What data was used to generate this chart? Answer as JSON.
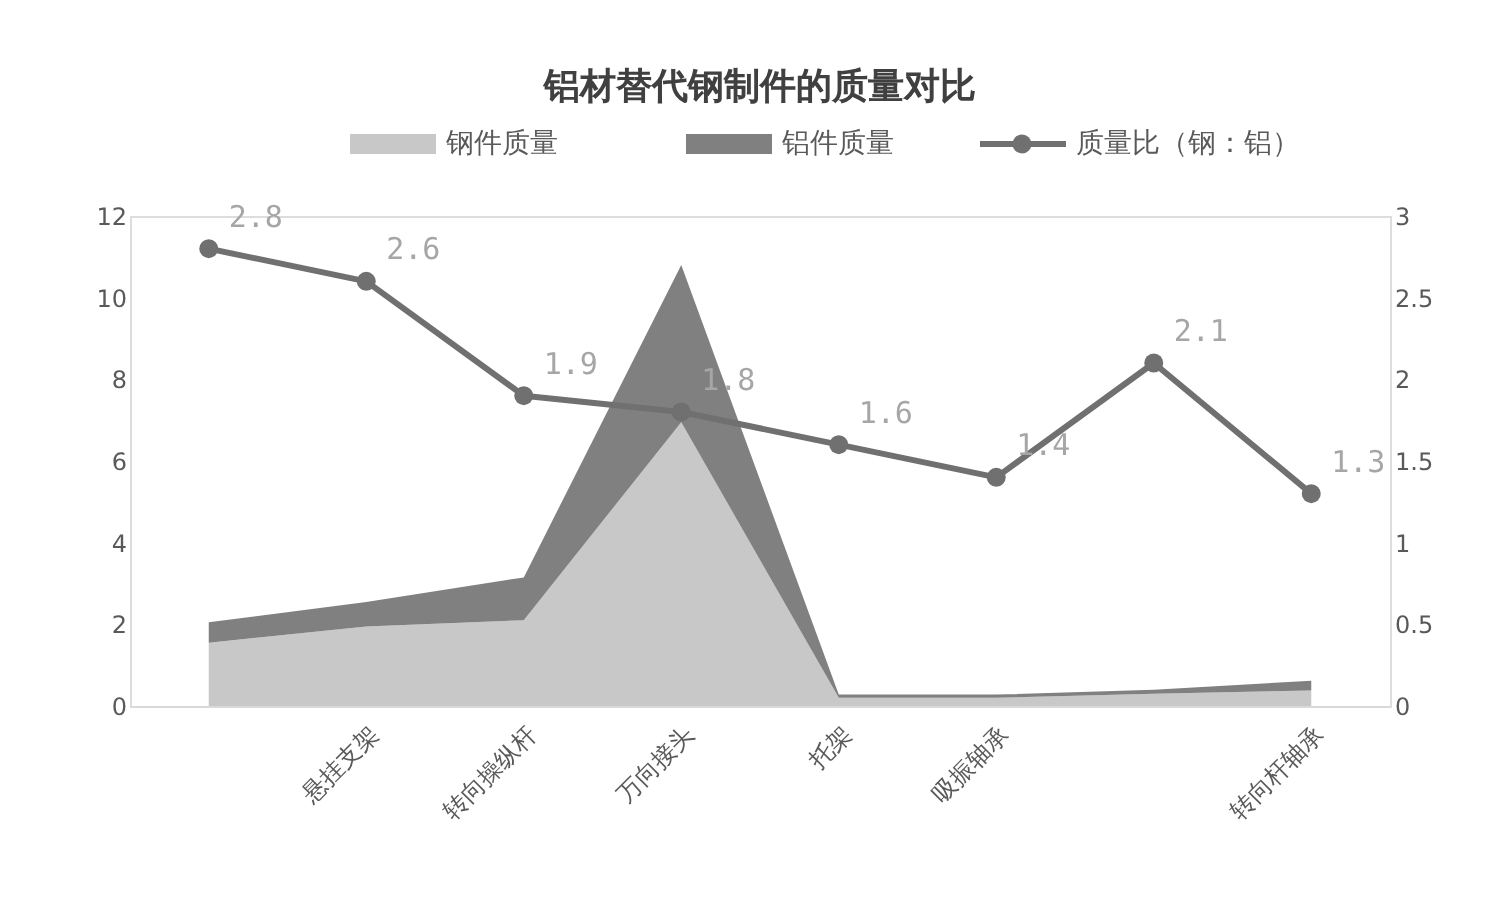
{
  "chart_data": {
    "type": "area",
    "title": "铝材替代钢制件的质量对比",
    "stacked": true,
    "legend": "top",
    "categories": [
      null,
      "悬挂支架",
      "转向操纵杆",
      "万向接头",
      "托架",
      "吸振轴承",
      null,
      "转向杆轴承"
    ],
    "ylim": [
      0,
      12
    ],
    "yticks": [
      0,
      2,
      4,
      6,
      8,
      10,
      12
    ],
    "y2lim": [
      0,
      3
    ],
    "y2ticks": [
      0,
      0.5,
      1,
      1.5,
      2,
      2.5,
      3
    ],
    "series": [
      {
        "name": "钢件质量",
        "type": "area",
        "color": "#c8c8c8",
        "values": [
          1.55,
          1.95,
          2.1,
          6.95,
          0.2,
          0.2,
          0.3,
          0.38
        ]
      },
      {
        "name": "铝件质量",
        "type": "area",
        "color": "#808080",
        "values": [
          0.5,
          0.6,
          1.05,
          3.85,
          0.08,
          0.08,
          0.1,
          0.24
        ]
      },
      {
        "name": "质量比（钢：铝）",
        "type": "line",
        "axis": "y2",
        "color": "#707070",
        "marker": "circle",
        "data_labels": true,
        "values": [
          2.8,
          2.6,
          1.9,
          1.8,
          1.6,
          1.4,
          2.1,
          1.3
        ]
      }
    ]
  }
}
